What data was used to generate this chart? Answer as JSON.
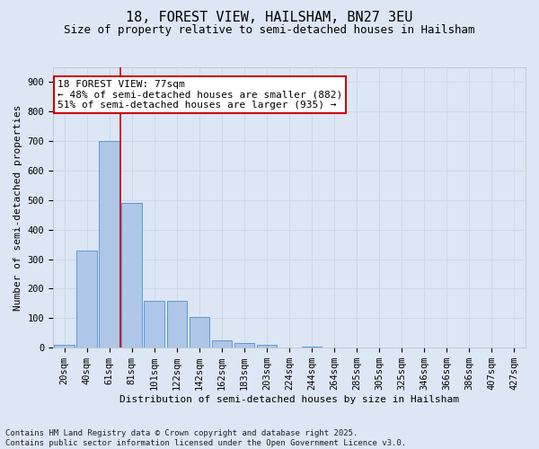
{
  "title": "18, FOREST VIEW, HAILSHAM, BN27 3EU",
  "subtitle": "Size of property relative to semi-detached houses in Hailsham",
  "xlabel": "Distribution of semi-detached houses by size in Hailsham",
  "ylabel": "Number of semi-detached properties",
  "bins": [
    "20sqm",
    "40sqm",
    "61sqm",
    "81sqm",
    "101sqm",
    "122sqm",
    "142sqm",
    "162sqm",
    "183sqm",
    "203sqm",
    "224sqm",
    "244sqm",
    "264sqm",
    "285sqm",
    "305sqm",
    "325sqm",
    "346sqm",
    "366sqm",
    "386sqm",
    "407sqm",
    "427sqm"
  ],
  "values": [
    10,
    330,
    700,
    490,
    160,
    160,
    105,
    25,
    15,
    10,
    0,
    5,
    0,
    0,
    0,
    0,
    0,
    0,
    0,
    0,
    0
  ],
  "bar_color": "#aec6e8",
  "bar_edge_color": "#5a9ad4",
  "grid_color": "#d0d8e8",
  "background_color": "#dce6f5",
  "vline_color": "#cc0000",
  "annotation_text": "18 FOREST VIEW: 77sqm\n← 48% of semi-detached houses are smaller (882)\n51% of semi-detached houses are larger (935) →",
  "annotation_box_color": "#ffffff",
  "annotation_box_edge": "#cc0000",
  "ylim": [
    0,
    950
  ],
  "yticks": [
    0,
    100,
    200,
    300,
    400,
    500,
    600,
    700,
    800,
    900
  ],
  "footer": "Contains HM Land Registry data © Crown copyright and database right 2025.\nContains public sector information licensed under the Open Government Licence v3.0.",
  "title_fontsize": 11,
  "subtitle_fontsize": 9,
  "axis_label_fontsize": 8,
  "tick_fontsize": 7.5,
  "annotation_fontsize": 8,
  "footer_fontsize": 6.5
}
